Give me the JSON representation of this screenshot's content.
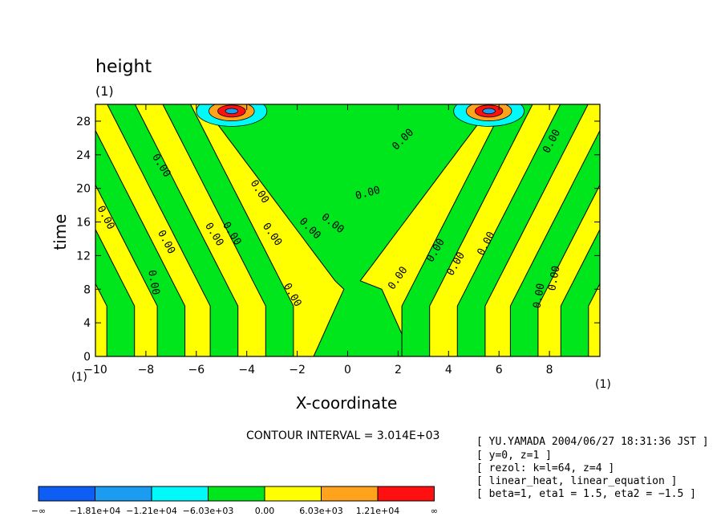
{
  "chart_data": {
    "type": "heatmap",
    "title": "height",
    "title_units": "(1)",
    "xlabel": "X-coordinate",
    "ylabel": "time",
    "x_units": "(1)",
    "y_units": "(1)",
    "xlim": [
      -10,
      10
    ],
    "ylim": [
      0,
      30
    ],
    "xticks": [
      -10,
      -8,
      -6,
      -4,
      -2,
      0,
      2,
      4,
      6,
      8
    ],
    "yticks": [
      0,
      4,
      8,
      12,
      16,
      20,
      24,
      28
    ],
    "xtick_labels": [
      "−10",
      "−8",
      "−6",
      "−4",
      "−2",
      "0",
      "2",
      "4",
      "6",
      "8"
    ],
    "ytick_labels": [
      "0",
      "4",
      "8",
      "12",
      "16",
      "20",
      "24",
      "28"
    ],
    "contour_interval_text": "CONTOUR INTERVAL = 3.014E+03",
    "contour_labels": [
      {
        "text": "0.00",
        "x": -9.6,
        "y": 16.5,
        "rot": 62
      },
      {
        "text": "0.00",
        "x": -7.4,
        "y": 22.7,
        "rot": 58
      },
      {
        "text": "0.00",
        "x": -7.2,
        "y": 13.6,
        "rot": 62
      },
      {
        "text": "0.00",
        "x": -7.7,
        "y": 8.8,
        "rot": 80
      },
      {
        "text": "0.00",
        "x": -5.3,
        "y": 14.5,
        "rot": 58
      },
      {
        "text": "0.00",
        "x": -4.6,
        "y": 14.6,
        "rot": 58
      },
      {
        "text": "0.00",
        "x": -3.5,
        "y": 19.6,
        "rot": 58
      },
      {
        "text": "0.00",
        "x": -3.0,
        "y": 14.5,
        "rot": 55
      },
      {
        "text": "0.00",
        "x": -2.2,
        "y": 7.3,
        "rot": 60
      },
      {
        "text": "0.00",
        "x": -1.5,
        "y": 15.2,
        "rot": 45
      },
      {
        "text": "0.00",
        "x": -0.6,
        "y": 15.8,
        "rot": 38
      },
      {
        "text": "0.00",
        "x": 0.8,
        "y": 19.4,
        "rot": -15
      },
      {
        "text": "0.00",
        "x": 2.2,
        "y": 25.8,
        "rot": -45
      },
      {
        "text": "0.00",
        "x": 2.0,
        "y": 9.3,
        "rot": -55
      },
      {
        "text": "0.00",
        "x": 3.5,
        "y": 12.6,
        "rot": -60
      },
      {
        "text": "0.00",
        "x": 4.3,
        "y": 11.0,
        "rot": -60
      },
      {
        "text": "0.00",
        "x": 5.5,
        "y": 13.4,
        "rot": -62
      },
      {
        "text": "0.00",
        "x": 8.1,
        "y": 25.6,
        "rot": -62
      },
      {
        "text": "0.00",
        "x": 7.6,
        "y": 7.2,
        "rot": -80
      },
      {
        "text": "0.00",
        "x": 8.2,
        "y": 9.3,
        "rot": -80
      }
    ],
    "legend": {
      "placement": "bottom-left",
      "colors": [
        "#0e5ef5",
        "#1a9df0",
        "#00fafa",
        "#00e61c",
        "#ffff00",
        "#ffa31c",
        "#ff1010"
      ],
      "labels": [
        "−∞",
        "−1.81e+04",
        "−1.21e+04",
        "−6.03e+03",
        "0.00",
        "6.03e+03",
        "1.21e+04",
        "∞"
      ]
    },
    "fill_colors": {
      "negative": "#00e61c",
      "positive": "#ffff00",
      "strong_positive": "#ffa31c",
      "peak_positive": "#ff1010",
      "strong_negative": "#00fafa",
      "deep_negative": "#1a9df0"
    }
  },
  "info_lines": [
    "[ YU.YAMADA 2004/06/27 18:31:36 JST ]",
    "[ y=0, z=1 ]",
    "[ rezol: k=l=64, z=4 ]",
    "[ linear_heat, linear_equation ]",
    "[ beta=1, eta1 = 1.5, eta2 = −1.5 ]"
  ]
}
